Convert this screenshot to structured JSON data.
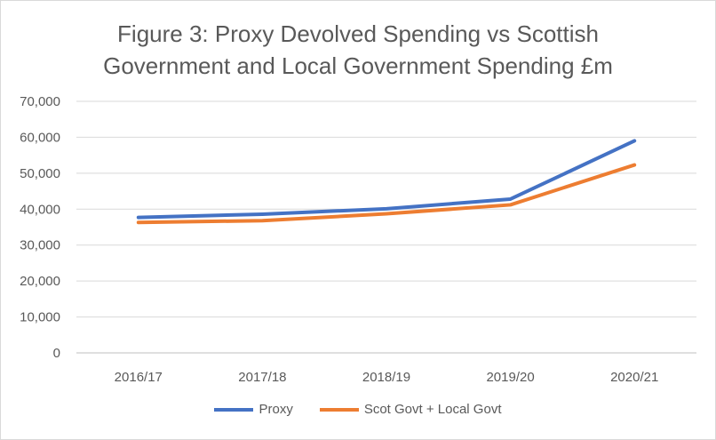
{
  "chart_data": {
    "type": "line",
    "title": "Figure 3: Proxy Devolved Spending vs Scottish Government and Local Government Spending £m",
    "title_lines": [
      "Figure 3: Proxy Devolved Spending vs Scottish",
      "Government and Local Government Spending £m"
    ],
    "categories": [
      "2016/17",
      "2017/18",
      "2018/19",
      "2019/20",
      "2020/21"
    ],
    "series": [
      {
        "name": "Proxy",
        "values": [
          37700,
          38600,
          40100,
          42800,
          59000
        ],
        "color": "#4472c4"
      },
      {
        "name": "Scot Govt + Local Govt",
        "values": [
          36300,
          36800,
          38700,
          41200,
          52300
        ],
        "color": "#ed7d31"
      }
    ],
    "ylim": [
      0,
      70000
    ],
    "yticks": [
      "0",
      "10,000",
      "20,000",
      "30,000",
      "40,000",
      "50,000",
      "60,000",
      "70,000"
    ],
    "grid": true,
    "legend": "bottom",
    "xlabel": "",
    "ylabel": ""
  }
}
